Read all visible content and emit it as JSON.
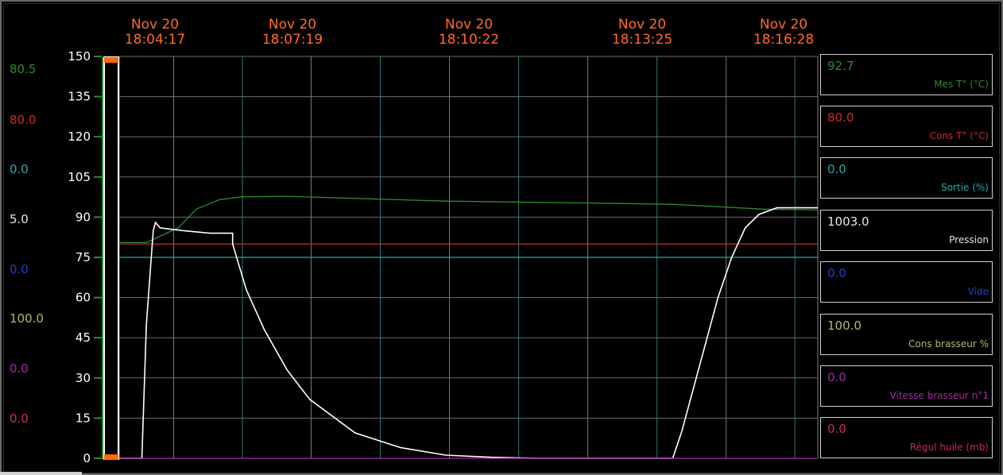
{
  "time_labels": [
    {
      "date": "Nov 20",
      "time": "18:04:17"
    },
    {
      "date": "Nov 20",
      "time": "18:07:19"
    },
    {
      "date": "Nov 20",
      "time": "18:10:22"
    },
    {
      "date": "Nov 20",
      "time": "18:13:25"
    },
    {
      "date": "Nov 20",
      "time": "18:16:28"
    }
  ],
  "left_values": [
    {
      "value": "80.5",
      "color": "#2e8b2e"
    },
    {
      "value": "80.0",
      "color": "#cc2a2a"
    },
    {
      "value": "0.0",
      "color": "#2aa8a8"
    },
    {
      "value": "5.0",
      "color": "#e6e6e6"
    },
    {
      "value": "0.0",
      "color": "#1f3fd6"
    },
    {
      "value": "100.0",
      "color": "#b8b86a"
    },
    {
      "value": "0.0",
      "color": "#a62aa6"
    },
    {
      "value": "0.0",
      "color": "#cc2a55"
    }
  ],
  "cards": [
    {
      "value": "92.7",
      "name": "Mes T° (°C)",
      "color": "#2e8b2e"
    },
    {
      "value": "80.0",
      "name": "Cons T° (°C)",
      "color": "#cc2a2a"
    },
    {
      "value": "0.0",
      "name": "Sortie (%)",
      "color": "#2aa8a8"
    },
    {
      "value": "1003.0",
      "name": "Pression",
      "color": "#e6e6e6"
    },
    {
      "value": "0.0",
      "name": "Vide",
      "color": "#1f3fd6"
    },
    {
      "value": "100.0",
      "name": "Cons brasseur %",
      "color": "#b8b86a"
    },
    {
      "value": "0.0",
      "name": "Vitesse brasseur n°1",
      "color": "#a62aa6"
    },
    {
      "value": "0.0",
      "name": "Régul huile (mb)",
      "color": "#cc2a55"
    }
  ],
  "chart_data": {
    "type": "line",
    "x_unit": "minutes",
    "xlim": [
      -1.2,
      14.2
    ],
    "ylim": [
      0,
      150
    ],
    "y_ticks": [
      0,
      15,
      30,
      45,
      60,
      75,
      90,
      105,
      120,
      135,
      150
    ],
    "x_tick_values": [
      0,
      3.03,
      6.08,
      9.13,
      12.18
    ],
    "x_tick_labels": [
      "18:04:17",
      "18:07:19",
      "18:10:22",
      "18:13:25",
      "18:16:28"
    ],
    "grid": true,
    "series": [
      {
        "color": "#2e8b2e",
        "x": [
          -1.2,
          -0.6,
          0.1,
          0.5,
          1.0,
          1.5,
          2.5,
          4,
          6,
          9,
          11,
          13,
          14.2
        ],
        "y": [
          80.5,
          80.5,
          86,
          93,
          96.5,
          97.6,
          97.8,
          97,
          96,
          95.3,
          94.8,
          93,
          92.7
        ]
      },
      {
        "color": "#cc2a2a",
        "x": [
          -1.2,
          14.2
        ],
        "y": [
          80,
          80
        ]
      },
      {
        "color": "#2aa8a8",
        "x": [
          -1.2,
          14.2
        ],
        "y": [
          75,
          75
        ]
      },
      {
        "color": "#ffffff",
        "x": [
          -1.2,
          -0.7,
          -0.6,
          -0.45,
          -0.4,
          -0.3,
          0.2,
          0.8,
          1.3,
          1.3,
          1.6,
          2.0,
          2.5,
          3.0,
          4.0,
          5.0,
          6.0,
          7.0,
          8.0,
          9.0,
          10.5,
          11.0,
          11.2,
          11.6,
          12.0,
          12.3,
          12.6,
          12.9,
          13.3,
          13.7,
          14.2
        ],
        "y": [
          0,
          0,
          50,
          85,
          88,
          86,
          85,
          84,
          84,
          80,
          63,
          48,
          33,
          22,
          9.5,
          4,
          1.2,
          0.4,
          0,
          0,
          0,
          0,
          10,
          35,
          60,
          75,
          86,
          91,
          93.5,
          93.5,
          93.5
        ]
      },
      {
        "color": "#a62aa6",
        "x": [
          -1.2,
          14.2
        ],
        "y": [
          0,
          0
        ]
      }
    ]
  }
}
